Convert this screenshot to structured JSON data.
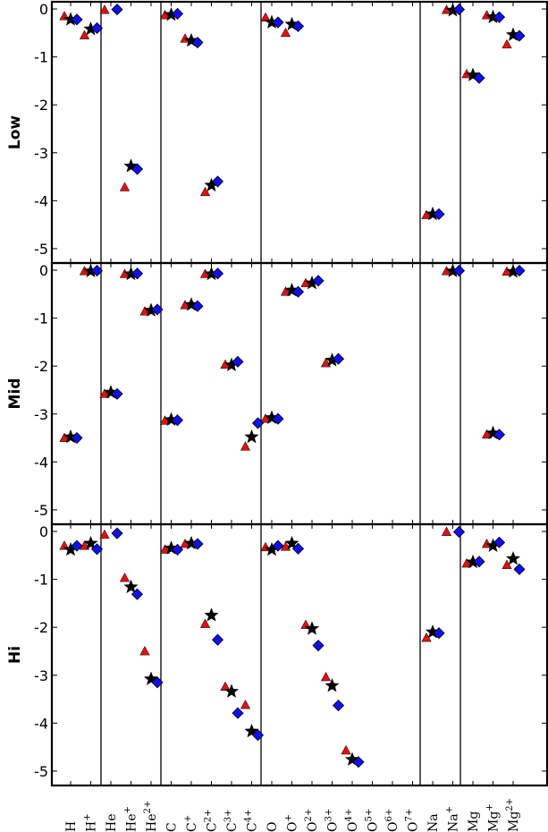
{
  "chart_data": {
    "type": "scatter",
    "title": "",
    "panels": [
      {
        "name": "Low"
      },
      {
        "name": "Mid"
      },
      {
        "name": "Hi"
      }
    ],
    "ylim": [
      -5.3,
      0.15
    ],
    "yticks": [
      0,
      -1,
      -2,
      -3,
      -4,
      -5
    ],
    "ytick_labels": [
      "0",
      "-1",
      "-2",
      "-3",
      "-4",
      "-5"
    ],
    "categories": [
      {
        "el": "H",
        "sup": ""
      },
      {
        "el": "H",
        "sup": "+"
      },
      {
        "el": "He",
        "sup": ""
      },
      {
        "el": "He",
        "sup": "+"
      },
      {
        "el": "He",
        "sup": "2+"
      },
      {
        "el": "C",
        "sup": ""
      },
      {
        "el": "C",
        "sup": "+"
      },
      {
        "el": "C",
        "sup": "2+"
      },
      {
        "el": "C",
        "sup": "3+"
      },
      {
        "el": "C",
        "sup": "4+"
      },
      {
        "el": "O",
        "sup": ""
      },
      {
        "el": "O",
        "sup": "+"
      },
      {
        "el": "O",
        "sup": "2+"
      },
      {
        "el": "O",
        "sup": "3+"
      },
      {
        "el": "O",
        "sup": "4+"
      },
      {
        "el": "O",
        "sup": "5+"
      },
      {
        "el": "O",
        "sup": "6+"
      },
      {
        "el": "O",
        "sup": "7+"
      },
      {
        "el": "Na",
        "sup": ""
      },
      {
        "el": "Na",
        "sup": "+"
      },
      {
        "el": "Mg",
        "sup": ""
      },
      {
        "el": "Mg",
        "sup": "+"
      },
      {
        "el": "Mg",
        "sup": "2+"
      }
    ],
    "element_separators_after": [
      "H+",
      "He2+",
      "C4+",
      "O7+",
      "Na+"
    ],
    "markers": {
      "triangle": {
        "shape": "triangle",
        "color": "#dd1111"
      },
      "star": {
        "shape": "star",
        "color": "#000000"
      },
      "diamond": {
        "shape": "diamond",
        "color": "#1010ee"
      }
    },
    "series": [
      {
        "marker": "triangle",
        "values": [
          [
            -0.15,
            -0.55,
            -0.02,
            -3.72,
            null,
            -0.13,
            -0.62,
            -3.82,
            null,
            null,
            -0.18,
            -0.5,
            null,
            null,
            null,
            null,
            null,
            null,
            -4.3,
            -0.02,
            -1.36,
            -0.13,
            -0.74
          ],
          [
            -3.5,
            -0.02,
            -2.58,
            -0.08,
            -0.86,
            -3.14,
            -0.73,
            -0.08,
            -1.97,
            -3.68,
            -3.1,
            -0.45,
            -0.27,
            -1.94,
            null,
            null,
            null,
            null,
            null,
            -0.02,
            null,
            -3.43,
            -0.03
          ],
          [
            -0.3,
            -0.3,
            -0.07,
            -0.97,
            -2.5,
            -0.38,
            -0.26,
            -1.93,
            -3.24,
            -3.62,
            -0.33,
            -0.32,
            -1.95,
            -3.04,
            -4.57,
            null,
            null,
            null,
            -2.22,
            -0.01,
            -0.67,
            -0.26,
            -0.7
          ]
        ]
      },
      {
        "marker": "star",
        "values": [
          [
            -0.22,
            -0.42,
            null,
            -3.28,
            null,
            -0.12,
            -0.66,
            -3.68,
            null,
            null,
            -0.28,
            -0.32,
            null,
            null,
            null,
            null,
            null,
            null,
            -4.28,
            -0.03,
            -1.38,
            -0.17,
            -0.54
          ],
          [
            -3.48,
            -0.02,
            -2.55,
            -0.08,
            -0.84,
            -3.12,
            -0.72,
            -0.08,
            -1.98,
            -3.48,
            -3.08,
            -0.42,
            -0.27,
            -1.88,
            null,
            null,
            null,
            null,
            null,
            -0.02,
            null,
            -3.4,
            -0.03
          ],
          [
            -0.38,
            -0.25,
            null,
            -1.16,
            -3.08,
            -0.35,
            -0.25,
            -1.75,
            -3.34,
            -4.17,
            -0.38,
            -0.25,
            -2.03,
            -3.22,
            -4.76,
            null,
            null,
            null,
            -2.1,
            null,
            -0.64,
            -0.3,
            -0.57
          ]
        ]
      },
      {
        "marker": "diamond",
        "values": [
          [
            -0.22,
            -0.4,
            -0.01,
            -3.34,
            null,
            -0.1,
            -0.7,
            -3.6,
            null,
            null,
            -0.28,
            -0.36,
            null,
            null,
            null,
            null,
            null,
            null,
            -4.28,
            -0.01,
            -1.44,
            -0.17,
            -0.56
          ],
          [
            -3.5,
            -0.01,
            -2.58,
            -0.07,
            -0.82,
            -3.13,
            -0.75,
            -0.07,
            -1.91,
            -3.19,
            -3.1,
            -0.45,
            -0.22,
            -1.85,
            null,
            null,
            null,
            null,
            null,
            -0.01,
            null,
            -3.43,
            -0.01
          ],
          [
            -0.3,
            -0.37,
            -0.04,
            -1.31,
            -3.15,
            -0.38,
            -0.26,
            -2.26,
            -3.79,
            -4.25,
            -0.3,
            -0.36,
            -2.38,
            -3.63,
            -4.81,
            null,
            null,
            null,
            -2.12,
            -0.01,
            -0.63,
            -0.23,
            -0.79
          ]
        ]
      }
    ],
    "grid": false,
    "legend": "none"
  }
}
